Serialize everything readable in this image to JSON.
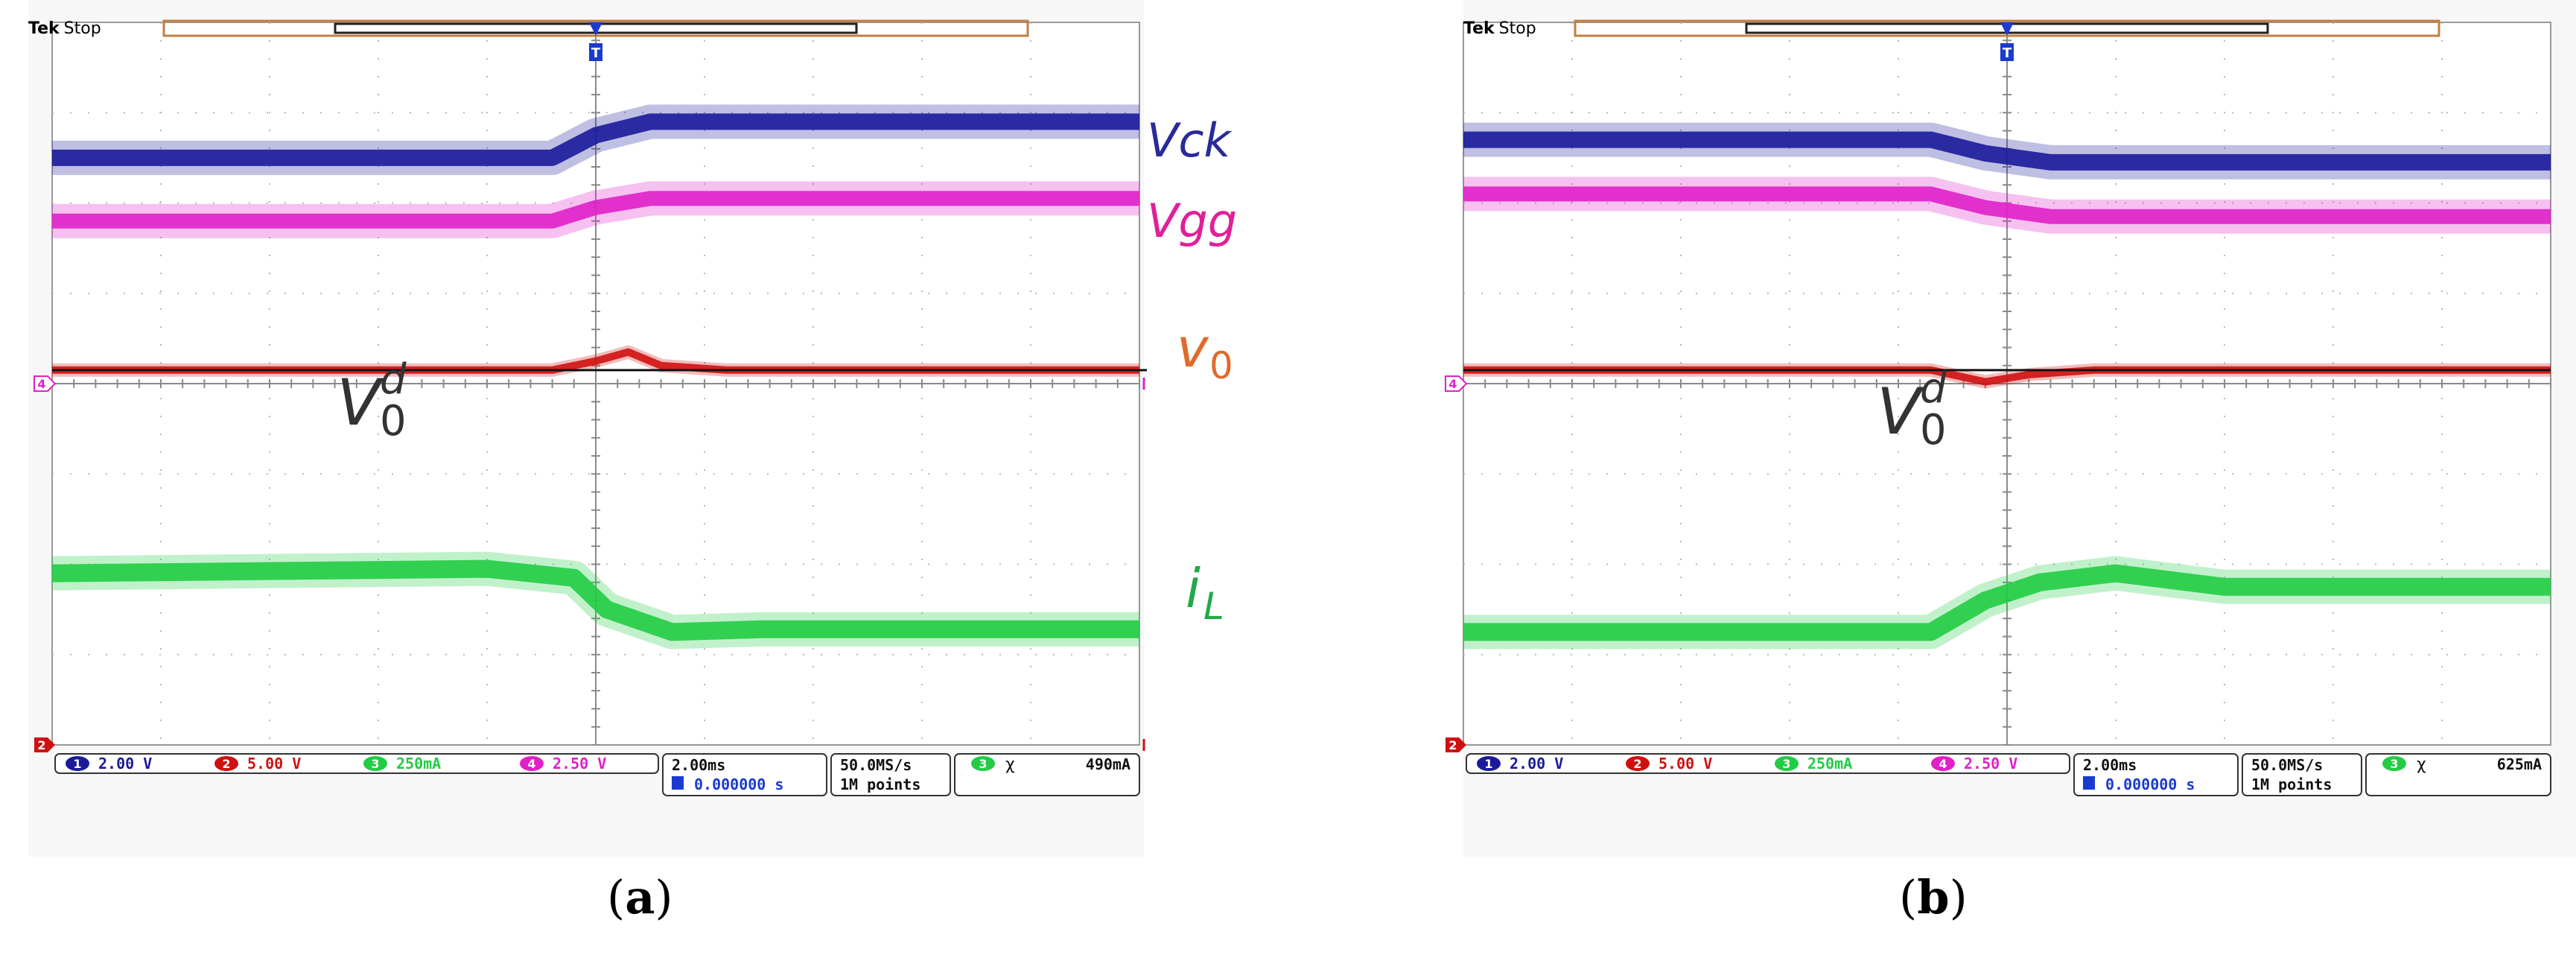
{
  "figure": {
    "panels": [
      {
        "id": "a",
        "label_open": "(",
        "label_letter": "a",
        "label_close": ")",
        "scope": {
          "brand": "Tek",
          "state": "Stop",
          "ch1": {
            "num": "1",
            "scale": "2.00 V",
            "color": "#1a1a9a"
          },
          "ch2": {
            "num": "2",
            "scale": "5.00 V",
            "color": "#d01010"
          },
          "ch3": {
            "num": "3",
            "scale": "250mA",
            "color": "#22cc44"
          },
          "ch4": {
            "num": "4",
            "scale": "2.50 V",
            "color": "#e020c8"
          },
          "timebase": "2.00ms",
          "trig_pos": "0.000000 s",
          "sample_rate": "50.0MS/s",
          "record": "1M points",
          "meas_ch": "3",
          "meas_value": "490mA",
          "left_marker_4": "4",
          "left_marker_2": "2"
        },
        "annotations": {
          "vck": "Vck",
          "vgg": "Vgg",
          "v0": "v",
          "v0_sub": "0",
          "v0d": "V",
          "v0d_sub": "0",
          "v0d_sup": "d",
          "il": "i",
          "il_sub": "L"
        }
      },
      {
        "id": "b",
        "label_open": "(",
        "label_letter": "b",
        "label_close": ")",
        "scope": {
          "brand": "Tek",
          "state": "Stop",
          "ch1": {
            "num": "1",
            "scale": "2.00 V",
            "color": "#1a1a9a"
          },
          "ch2": {
            "num": "2",
            "scale": "5.00 V",
            "color": "#d01010"
          },
          "ch3": {
            "num": "3",
            "scale": "250mA",
            "color": "#22cc44"
          },
          "ch4": {
            "num": "4",
            "scale": "2.50 V",
            "color": "#e020c8"
          },
          "timebase": "2.00ms",
          "trig_pos": "0.000000 s",
          "sample_rate": "50.0MS/s",
          "record": "1M points",
          "meas_ch": "3",
          "meas_value": "625mA",
          "left_marker_4": "4",
          "left_marker_2": "2"
        },
        "annotations": {
          "vck": "Vck",
          "vgg": "Vgg",
          "v0": "v",
          "v0_sub": "0",
          "v0d": "V",
          "v0d_sub": "0",
          "v0d_sup": "d",
          "il": "i",
          "il_sub": "L"
        }
      }
    ]
  },
  "chart_data": [
    {
      "type": "line",
      "panel": "a",
      "x_divisions": 10,
      "y_divisions": 8,
      "time_per_div": "2.00ms",
      "trigger_div": 5,
      "series": [
        {
          "name": "Vck",
          "color": "#1a1a9a",
          "x": [
            0,
            4.6,
            5.0,
            5.5,
            10
          ],
          "y": [
            2.5,
            2.5,
            2.75,
            2.9,
            2.9
          ]
        },
        {
          "name": "Vgg",
          "color": "#e020c8",
          "x": [
            0,
            4.6,
            5.0,
            5.5,
            10
          ],
          "y": [
            1.8,
            1.8,
            1.95,
            2.05,
            2.05
          ]
        },
        {
          "name": "v0",
          "color": "#d01010",
          "x": [
            0,
            4.6,
            5.0,
            5.3,
            5.6,
            6.2,
            10
          ],
          "y": [
            0.15,
            0.15,
            0.25,
            0.35,
            0.2,
            0.15,
            0.15
          ]
        },
        {
          "name": "iL",
          "color": "#22cc44",
          "x": [
            0,
            4.0,
            4.8,
            5.1,
            5.7,
            6.5,
            10
          ],
          "y": [
            -2.1,
            -2.05,
            -2.15,
            -2.5,
            -2.75,
            -2.72,
            -2.72
          ]
        }
      ]
    },
    {
      "type": "line",
      "panel": "b",
      "x_divisions": 10,
      "y_divisions": 8,
      "time_per_div": "2.00ms",
      "trigger_div": 5,
      "series": [
        {
          "name": "Vck",
          "color": "#1a1a9a",
          "x": [
            0,
            4.3,
            4.8,
            5.4,
            10
          ],
          "y": [
            2.7,
            2.7,
            2.55,
            2.45,
            2.45
          ]
        },
        {
          "name": "Vgg",
          "color": "#e020c8",
          "x": [
            0,
            4.3,
            4.8,
            5.4,
            10
          ],
          "y": [
            2.1,
            2.1,
            1.95,
            1.85,
            1.85
          ]
        },
        {
          "name": "v0",
          "color": "#d01010",
          "x": [
            0,
            4.3,
            4.8,
            5.2,
            5.8,
            10
          ],
          "y": [
            0.15,
            0.15,
            0.02,
            0.1,
            0.15,
            0.15
          ]
        },
        {
          "name": "iL",
          "color": "#22cc44",
          "x": [
            0,
            4.3,
            4.8,
            5.3,
            6.0,
            7.0,
            10
          ],
          "y": [
            -2.75,
            -2.75,
            -2.4,
            -2.2,
            -2.1,
            -2.25,
            -2.25
          ]
        }
      ]
    }
  ]
}
